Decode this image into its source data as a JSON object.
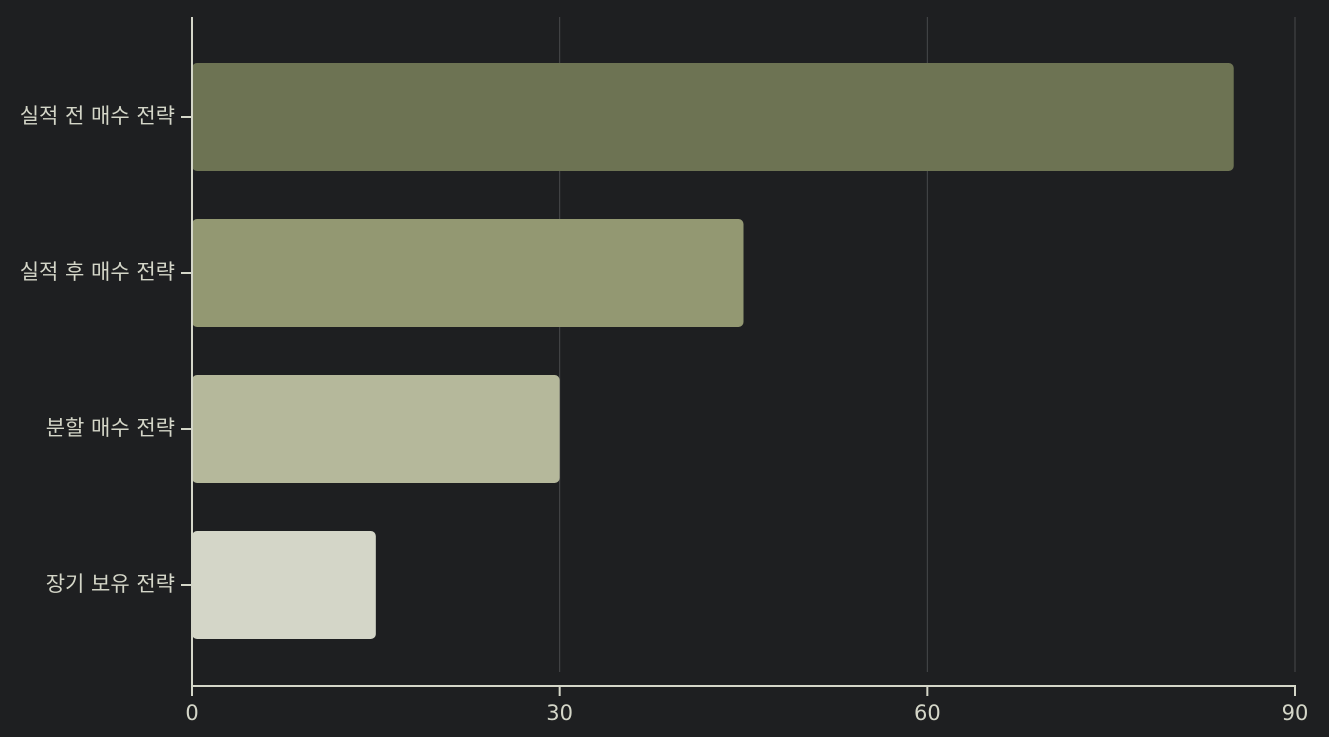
{
  "chart_data": {
    "type": "bar",
    "orientation": "horizontal",
    "categories": [
      "실적 전 매수 전략",
      "실적 후 매수 전략",
      "분할 매수 전략",
      "장기 보유 전략"
    ],
    "values": [
      85,
      45,
      30,
      15
    ],
    "colors": [
      "#6d7353",
      "#939872",
      "#b5b89b",
      "#d4d6c8"
    ],
    "xlim": [
      0,
      90
    ],
    "xticks": [
      0,
      30,
      60,
      90
    ],
    "grid": true
  }
}
